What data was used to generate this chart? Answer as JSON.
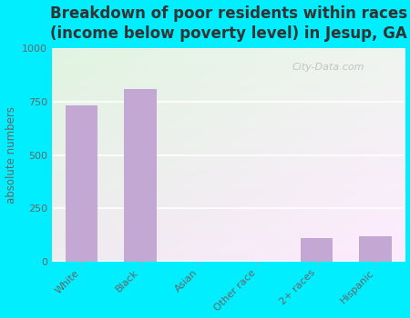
{
  "title": "Breakdown of poor residents within races\n(income below poverty level) in Jesup, GA",
  "categories": [
    "White",
    "Black",
    "Asian",
    "Other race",
    "2+ races",
    "Hispanic"
  ],
  "values": [
    730,
    810,
    0,
    0,
    110,
    120
  ],
  "bar_color": "#c4a8d4",
  "ylabel": "absolute numbers",
  "ylim": [
    0,
    1000
  ],
  "yticks": [
    0,
    250,
    500,
    750,
    1000
  ],
  "background_outer": "#00eeff",
  "title_fontsize": 12,
  "title_fontweight": "bold",
  "title_color": "#333333",
  "tick_color": "#666666",
  "watermark": "City-Data.com",
  "watermark_color": "#bbbbbb"
}
